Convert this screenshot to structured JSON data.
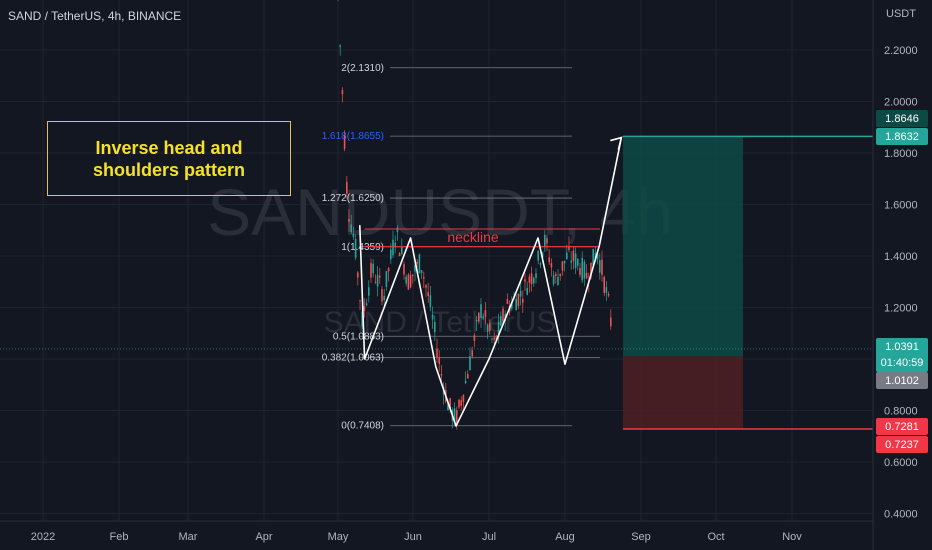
{
  "header": {
    "symbol": "SAND / TetherUS, 4h, BINANCE"
  },
  "watermark": {
    "main": "SANDUSDT, 4h",
    "sub": "SAND / TetherUS"
  },
  "annotation": {
    "text": "Inverse head and shoulders pattern",
    "neckline_label": "neckline"
  },
  "colors": {
    "background": "#131722",
    "grid": "#1f2330",
    "axis_text": "#b2b5be",
    "up_candle": "#26a69a",
    "down_candle": "#ef5350",
    "pattern_line": "#ffffff",
    "neckline": "#f23645",
    "target_zone": "#0e4a45",
    "stop_zone": "#4b1f24",
    "target_line": "#26a69a",
    "stop_line": "#f23645",
    "annotation": "#f5e12a"
  },
  "chart_data": {
    "type": "candlestick",
    "title": "SAND / TetherUS, 4h, BINANCE",
    "yaxis_label": "USDT",
    "ylim": [
      0.3,
      2.4
    ],
    "y_ticks": [
      "2.2000",
      "2.0000",
      "1.8000",
      "1.6000",
      "1.4000",
      "1.2000",
      "0.8000",
      "0.6000",
      "0.4000"
    ],
    "x_tick_labels": [
      "2022",
      "Feb",
      "Mar",
      "Apr",
      "May",
      "Jun",
      "Jul",
      "Aug",
      "Sep",
      "Oct",
      "Nov"
    ],
    "price_path": [
      {
        "x": "May 1",
        "y": 2.4
      },
      {
        "x": "May 3",
        "y": 2.0
      },
      {
        "x": "May 5",
        "y": 1.6
      },
      {
        "x": "May 8",
        "y": 1.45
      },
      {
        "x": "May 11",
        "y": 1.15
      },
      {
        "x": "May 15",
        "y": 1.35
      },
      {
        "x": "May 20",
        "y": 1.25
      },
      {
        "x": "May 25",
        "y": 1.5
      },
      {
        "x": "May 30",
        "y": 1.3
      },
      {
        "x": "Jun 4",
        "y": 1.38
      },
      {
        "x": "Jun 8",
        "y": 1.2
      },
      {
        "x": "Jun 12",
        "y": 0.95
      },
      {
        "x": "Jun 15",
        "y": 0.82
      },
      {
        "x": "Jun 18",
        "y": 0.76
      },
      {
        "x": "Jun 22",
        "y": 0.92
      },
      {
        "x": "Jun 28",
        "y": 1.2
      },
      {
        "x": "Jul 3",
        "y": 1.05
      },
      {
        "x": "Jul 8",
        "y": 1.2
      },
      {
        "x": "Jul 14",
        "y": 1.25
      },
      {
        "x": "Jul 20",
        "y": 1.35
      },
      {
        "x": "Jul 24",
        "y": 1.46
      },
      {
        "x": "Jul 28",
        "y": 1.3
      },
      {
        "x": "Aug 2",
        "y": 1.4
      },
      {
        "x": "Aug 6",
        "y": 1.38
      },
      {
        "x": "Aug 10",
        "y": 1.32
      },
      {
        "x": "Aug 14",
        "y": 1.42
      },
      {
        "x": "Aug 16",
        "y": 1.35
      },
      {
        "x": "Aug 19",
        "y": 1.2
      },
      {
        "x": "Aug 21",
        "y": 1.04
      }
    ],
    "pattern_points": [
      {
        "x": "May 10",
        "y": 1.52
      },
      {
        "x": "May 12",
        "y": 1.0
      },
      {
        "x": "May 31",
        "y": 1.47
      },
      {
        "x": "Jun 10",
        "y": 0.97
      },
      {
        "x": "Jun 18",
        "y": 0.74
      },
      {
        "x": "Jul 1",
        "y": 1.0
      },
      {
        "x": "Jul 21",
        "y": 1.47
      },
      {
        "x": "Aug 1",
        "y": 0.98
      },
      {
        "x": "Aug 15",
        "y": 1.44
      },
      {
        "x": "Aug 24",
        "y": 1.86
      }
    ],
    "neckline": {
      "from": {
        "x": "May 12",
        "y": 1.4361
      },
      "to": {
        "x": "Aug 16",
        "y": 1.4361
      }
    },
    "fib_levels": [
      {
        "ratio": "2",
        "price": "2.1310",
        "value": 2.131
      },
      {
        "ratio": "1.618",
        "price": "1.8655",
        "value": 1.8655
      },
      {
        "ratio": "1.272",
        "price": "1.6250",
        "value": 1.625
      },
      {
        "ratio": "1",
        "price": "1.4359",
        "value": 1.4359
      },
      {
        "ratio": "0.5",
        "price": "1.0883",
        "value": 1.0883
      },
      {
        "ratio": "0.382",
        "price": "1.0063",
        "value": 1.0063
      },
      {
        "ratio": "0",
        "price": "0.7408",
        "value": 0.7408
      }
    ],
    "position": {
      "entry": 1.0102,
      "target": 1.8646,
      "stop": 0.7281
    },
    "price_labels": [
      {
        "text": "1.8646",
        "value": 1.8646,
        "bg": "#0e4a45",
        "fg": "#ffffff"
      },
      {
        "text": "1.8632",
        "value": 1.8632,
        "bg": "#26a69a",
        "fg": "#ffffff"
      },
      {
        "text": "1.0391",
        "value": 1.0391,
        "bg": "#26a69a",
        "fg": "#ffffff",
        "extra": "01:40:59"
      },
      {
        "text": "1.0102",
        "value": 1.0102,
        "bg": "#787b86",
        "fg": "#ffffff"
      },
      {
        "text": "0.7281",
        "value": 0.7281,
        "bg": "#f23645",
        "fg": "#ffffff"
      },
      {
        "text": "0.7237",
        "value": 0.7237,
        "bg": "#f23645",
        "fg": "#ffffff"
      }
    ]
  }
}
